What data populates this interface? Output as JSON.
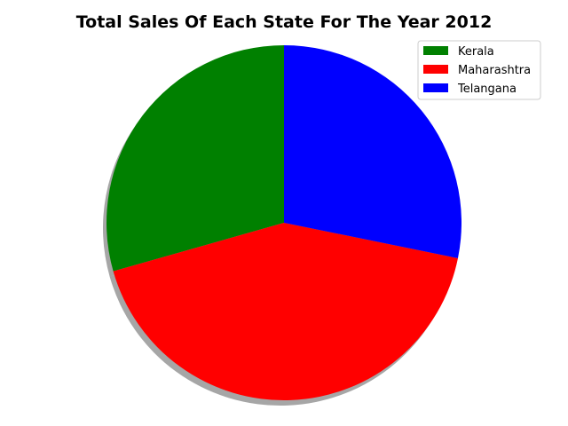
{
  "chart_data": {
    "type": "pie",
    "title": "Total Sales Of Each State For The Year 2012",
    "categories": [
      "Kerala",
      "Maharashtra",
      "Telangana"
    ],
    "values": [
      29.4,
      42.4,
      28.2
    ],
    "colors": [
      "#008000",
      "#ff0000",
      "#0000ff"
    ],
    "start_angle_deg": 90,
    "direction": "counterclockwise",
    "shadow": true,
    "legend": {
      "placement": "top-right",
      "entries": [
        "Kerala",
        "Maharashtra",
        "Telangana"
      ]
    }
  }
}
